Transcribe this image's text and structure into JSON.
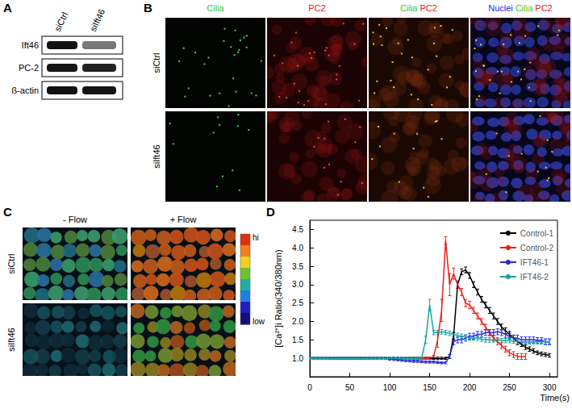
{
  "panels": {
    "A": {
      "label": "A",
      "columns": [
        "siCtrl",
        "siIft46"
      ],
      "rows": [
        "Ift46",
        "PC-2",
        "ß-actin"
      ]
    },
    "B": {
      "label": "B",
      "columns": [
        [
          {
            "text": "Cilia",
            "color": "#33cc33"
          }
        ],
        [
          {
            "text": "PC2",
            "color": "#e02020"
          }
        ],
        [
          {
            "text": "Cilia",
            "color": "#33cc33"
          },
          {
            "text": "PC2",
            "color": "#e02020"
          }
        ],
        [
          {
            "text": "Nuclei",
            "color": "#2020ff"
          },
          {
            "text": "Cilia",
            "color": "#33cc33"
          },
          {
            "text": "PC2",
            "color": "#e02020"
          }
        ]
      ],
      "rows": [
        "siCtrl",
        "siIft46"
      ]
    },
    "C": {
      "label": "C",
      "columns": [
        "- Flow",
        "+ Flow"
      ],
      "rows": [
        "siCtrl",
        "siIft46"
      ],
      "colorbar": [
        "hi",
        "low"
      ]
    },
    "D": {
      "label": "D"
    }
  },
  "chart_data": {
    "type": "line",
    "x_label": "Time(s)",
    "y_label": "[Ca²⁺]i Ratio(340/380nm)",
    "x": [
      0,
      5,
      10,
      15,
      20,
      25,
      30,
      35,
      40,
      45,
      50,
      55,
      60,
      65,
      70,
      75,
      80,
      85,
      90,
      95,
      100,
      105,
      110,
      115,
      120,
      125,
      130,
      135,
      140,
      145,
      150,
      155,
      160,
      165,
      170,
      175,
      180,
      185,
      190,
      195,
      200,
      205,
      210,
      215,
      220,
      225,
      230,
      235,
      240,
      245,
      250,
      255,
      260,
      265,
      270,
      275,
      280,
      285,
      290,
      295,
      300
    ],
    "series": [
      {
        "name": "Control-1",
        "color": "#000000",
        "values": [
          1.0,
          1.0,
          1.0,
          1.0,
          1.0,
          1.0,
          1.0,
          1.0,
          1.0,
          1.0,
          1.0,
          1.0,
          1.0,
          1.0,
          1.0,
          1.0,
          1.0,
          1.0,
          1.0,
          1.0,
          1.0,
          1.0,
          1.0,
          1.0,
          1.0,
          1.0,
          1.0,
          1.0,
          1.0,
          1.0,
          1.0,
          1.0,
          1.0,
          1.0,
          1.0,
          1.05,
          1.6,
          3.0,
          3.35,
          3.4,
          3.25,
          3.0,
          2.8,
          2.6,
          2.45,
          2.3,
          2.15,
          2.0,
          1.85,
          1.75,
          1.65,
          1.55,
          1.45,
          1.38,
          1.3,
          1.25,
          1.2,
          1.15,
          1.12,
          1.1,
          1.08
        ],
        "errors": [
          0.03,
          0.03,
          0.03,
          0.03,
          0.03,
          0.03,
          0.03,
          0.03,
          0.03,
          0.03,
          0.03,
          0.03,
          0.03,
          0.03,
          0.03,
          0.03,
          0.03,
          0.03,
          0.03,
          0.03,
          0.03,
          0.03,
          0.03,
          0.03,
          0.03,
          0.03,
          0.03,
          0.03,
          0.03,
          0.03,
          0.03,
          0.03,
          0.03,
          0.03,
          0.03,
          0.05,
          0.1,
          0.1,
          0.08,
          0.08,
          0.08,
          0.08,
          0.08,
          0.08,
          0.08,
          0.08,
          0.08,
          0.08,
          0.08,
          0.08,
          0.08,
          0.08,
          0.08,
          0.06,
          0.06,
          0.06,
          0.06,
          0.05,
          0.05,
          0.05,
          0.05
        ]
      },
      {
        "name": "Control-2",
        "color": "#e8231b",
        "values": [
          1.0,
          1.0,
          1.0,
          1.0,
          1.0,
          1.0,
          1.0,
          1.0,
          1.0,
          1.0,
          1.0,
          1.0,
          1.0,
          1.0,
          1.0,
          1.0,
          1.0,
          1.0,
          1.0,
          1.0,
          1.0,
          1.0,
          1.0,
          1.0,
          1.0,
          1.0,
          1.0,
          1.0,
          1.0,
          1.0,
          1.0,
          1.05,
          1.5,
          2.3,
          4.2,
          3.0,
          3.3,
          3.0,
          2.8,
          2.5,
          2.45,
          2.3,
          2.15,
          2.0,
          1.85,
          1.7,
          1.55,
          1.45,
          1.35,
          1.25,
          1.15,
          1.1,
          1.05,
          1.05,
          1.05,
          null,
          null,
          null,
          null,
          null,
          null
        ],
        "errors": [
          0.03,
          0.03,
          0.03,
          0.03,
          0.03,
          0.03,
          0.03,
          0.03,
          0.03,
          0.03,
          0.03,
          0.03,
          0.03,
          0.03,
          0.03,
          0.03,
          0.03,
          0.03,
          0.03,
          0.03,
          0.03,
          0.03,
          0.03,
          0.03,
          0.03,
          0.03,
          0.03,
          0.03,
          0.03,
          0.03,
          0.03,
          0.03,
          0.2,
          0.3,
          0.1,
          0.3,
          0.15,
          0.1,
          0.1,
          0.1,
          0.1,
          0.08,
          0.08,
          0.08,
          0.08,
          0.08,
          0.08,
          0.08,
          0.08,
          0.08,
          0.08,
          0.08,
          0.08,
          0.08,
          0.08,
          null,
          null,
          null,
          null,
          null,
          null
        ]
      },
      {
        "name": "IFT46-1",
        "color": "#2b2bd9",
        "values": [
          1.0,
          1.0,
          1.0,
          1.0,
          1.0,
          1.0,
          1.0,
          1.0,
          1.0,
          1.0,
          1.0,
          1.0,
          1.0,
          1.0,
          1.0,
          1.0,
          1.0,
          1.0,
          1.0,
          1.0,
          0.98,
          0.97,
          0.96,
          0.95,
          0.94,
          0.93,
          0.92,
          0.92,
          0.91,
          0.9,
          0.9,
          0.9,
          0.89,
          0.88,
          0.88,
          1.05,
          1.45,
          1.5,
          1.5,
          1.55,
          1.6,
          1.6,
          1.65,
          1.65,
          1.7,
          1.7,
          1.7,
          1.72,
          1.7,
          1.65,
          1.6,
          1.55,
          1.55,
          1.5,
          1.5,
          1.5,
          1.5,
          1.48,
          1.48,
          1.45,
          1.45
        ],
        "errors": [
          0.03,
          0.03,
          0.03,
          0.03,
          0.03,
          0.03,
          0.03,
          0.03,
          0.03,
          0.03,
          0.03,
          0.03,
          0.03,
          0.03,
          0.03,
          0.03,
          0.03,
          0.03,
          0.03,
          0.03,
          0.03,
          0.03,
          0.03,
          0.03,
          0.03,
          0.03,
          0.03,
          0.03,
          0.03,
          0.03,
          0.03,
          0.03,
          0.03,
          0.03,
          0.03,
          0.05,
          0.08,
          0.08,
          0.08,
          0.08,
          0.08,
          0.08,
          0.08,
          0.08,
          0.08,
          0.08,
          0.08,
          0.08,
          0.08,
          0.08,
          0.08,
          0.08,
          0.08,
          0.08,
          0.08,
          0.08,
          0.08,
          0.08,
          0.08,
          0.08,
          0.08
        ]
      },
      {
        "name": "IFT46-2",
        "color": "#1aa3a3",
        "values": [
          1.0,
          1.0,
          1.0,
          1.0,
          1.0,
          1.0,
          1.0,
          1.0,
          1.0,
          1.0,
          1.0,
          1.0,
          1.0,
          1.0,
          1.0,
          1.0,
          1.0,
          1.0,
          1.0,
          1.0,
          1.0,
          1.0,
          1.0,
          1.0,
          1.0,
          1.0,
          1.0,
          1.0,
          1.0,
          1.5,
          2.45,
          1.7,
          1.7,
          1.72,
          1.7,
          1.68,
          1.65,
          1.62,
          1.6,
          1.58,
          1.55,
          1.55,
          1.55,
          1.52,
          1.5,
          1.5,
          1.5,
          1.5,
          1.48,
          1.48,
          1.48,
          1.47,
          1.46,
          1.45,
          1.45,
          1.45,
          1.45,
          1.45,
          1.45,
          1.45,
          1.45
        ],
        "errors": [
          0.03,
          0.03,
          0.03,
          0.03,
          0.03,
          0.03,
          0.03,
          0.03,
          0.03,
          0.03,
          0.03,
          0.03,
          0.03,
          0.03,
          0.03,
          0.03,
          0.03,
          0.03,
          0.03,
          0.03,
          0.03,
          0.03,
          0.03,
          0.03,
          0.03,
          0.03,
          0.03,
          0.03,
          0.03,
          0.1,
          0.15,
          0.06,
          0.06,
          0.06,
          0.06,
          0.06,
          0.06,
          0.06,
          0.06,
          0.06,
          0.06,
          0.06,
          0.06,
          0.06,
          0.06,
          0.06,
          0.06,
          0.06,
          0.06,
          0.06,
          0.06,
          0.06,
          0.06,
          0.06,
          0.06,
          0.06,
          0.06,
          0.06,
          0.06,
          0.06,
          0.06
        ]
      }
    ],
    "xlim": [
      0,
      310
    ],
    "xticks": [
      0,
      50,
      100,
      150,
      200,
      250,
      300
    ],
    "ylim": [
      0.5,
      4.75
    ],
    "yticks": [
      {
        "value": 1,
        "label": "1.0"
      },
      {
        "value": 1.5,
        "label": "1.5"
      },
      {
        "value": 2,
        "label": "2.0"
      },
      {
        "value": 2.5,
        "label": "2.5"
      },
      {
        "value": 3,
        "label": "3.0"
      },
      {
        "value": 3.5,
        "label": "3.5"
      },
      {
        "value": 4,
        "label": "4.0"
      },
      {
        "value": 4.5,
        "label": "4.5"
      }
    ],
    "grid": false,
    "legend": "upper right"
  }
}
